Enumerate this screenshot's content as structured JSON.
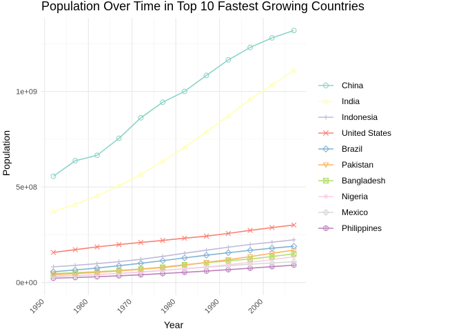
{
  "chart_data": {
    "type": "line",
    "title": "Population Over Time in Top 10 Fastest Growing Countries",
    "xlabel": "Year",
    "ylabel": "Population",
    "x": [
      1952,
      1957,
      1962,
      1967,
      1972,
      1977,
      1982,
      1987,
      1992,
      1997,
      2002,
      2007
    ],
    "x_ticks": [
      1950,
      1960,
      1970,
      1980,
      1990,
      2000
    ],
    "x_tick_labels": [
      "1950",
      "1960",
      "1970",
      "1980",
      "1990",
      "2000"
    ],
    "y_ticks": [
      0,
      500000000,
      1000000000
    ],
    "y_tick_labels": [
      "0e+00",
      "5e+08",
      "1e+09"
    ],
    "xlim": [
      1950,
      2007
    ],
    "ylim": [
      0,
      1318683096
    ],
    "grid": true,
    "legend_position": "right",
    "series": [
      {
        "name": "China",
        "color": "#8dd3c7",
        "marker": "circle",
        "values": [
          556263527,
          637408000,
          665770000,
          754550000,
          862030000,
          943455000,
          1000281000,
          1084035000,
          1164970000,
          1230075000,
          1280400000,
          1318683096
        ]
      },
      {
        "name": "India",
        "color": "#ffffb3",
        "marker": "triangle",
        "values": [
          372000000,
          409000000,
          454000000,
          506000000,
          567000000,
          634000000,
          708000000,
          788000000,
          872000000,
          959000000,
          1034172547,
          1110396331
        ]
      },
      {
        "name": "Indonesia",
        "color": "#bebada",
        "marker": "plus",
        "values": [
          82052000,
          90124000,
          99028000,
          109343000,
          121282000,
          136725000,
          153343000,
          169276000,
          184816000,
          199278000,
          211060000,
          223547000
        ]
      },
      {
        "name": "United States",
        "color": "#fb8072",
        "marker": "cross",
        "values": [
          157553000,
          171984000,
          186538000,
          198712000,
          209896000,
          220239000,
          232187835,
          242803533,
          256894189,
          272911760,
          287675526,
          301139947
        ]
      },
      {
        "name": "Brazil",
        "color": "#80b1d3",
        "marker": "diamond",
        "values": [
          56602560,
          65551171,
          76039390,
          88049823,
          100840058,
          114313951,
          128962939,
          142938076,
          155975974,
          168546719,
          179914212,
          190010647
        ]
      },
      {
        "name": "Pakistan",
        "color": "#fdb462",
        "marker": "triangle-down",
        "values": [
          41346560,
          46679944,
          53100671,
          60641899,
          69325921,
          78152686,
          91462088,
          105186881,
          120065004,
          135564834,
          153403524,
          169270617
        ]
      },
      {
        "name": "Bangladesh",
        "color": "#b3de69",
        "marker": "square-cross",
        "values": [
          46886859,
          51365468,
          56839289,
          62821884,
          70759295,
          80428306,
          93074406,
          103764241,
          113704579,
          123315288,
          135656790,
          150448339
        ]
      },
      {
        "name": "Nigeria",
        "color": "#fccde5",
        "marker": "asterisk",
        "values": [
          33119096,
          37173340,
          41871351,
          47287752,
          53740085,
          62209173,
          73039376,
          81551520,
          93364244,
          106207839,
          119901274,
          135031164
        ]
      },
      {
        "name": "Mexico",
        "color": "#d9d9d9",
        "marker": "diamond-plus",
        "values": [
          30144317,
          35015548,
          41121485,
          47995559,
          55984294,
          63759976,
          71640904,
          80122492,
          88111030,
          95895146,
          102479927,
          108700891
        ]
      },
      {
        "name": "Philippines",
        "color": "#bc80bd",
        "marker": "circle-plus",
        "values": [
          22438691,
          26072194,
          30325264,
          35356600,
          40850141,
          46850962,
          53456774,
          60017788,
          67185766,
          75012988,
          82995088,
          91077287
        ]
      }
    ]
  }
}
